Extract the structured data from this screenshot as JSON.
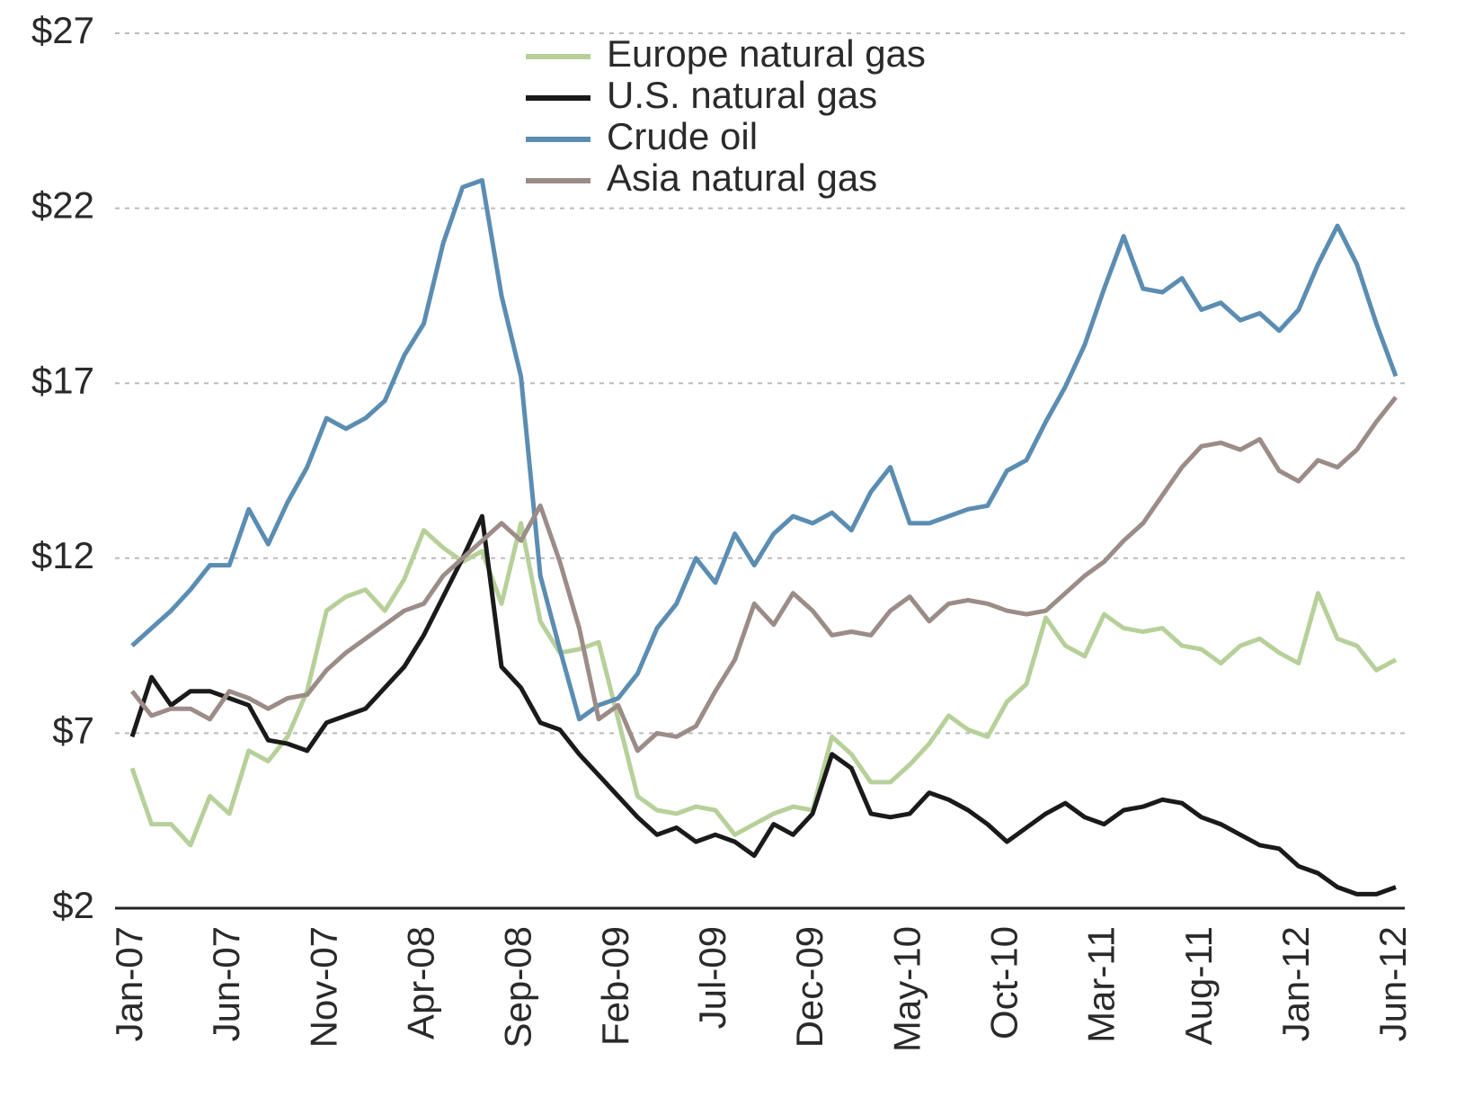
{
  "chart_data": {
    "type": "line",
    "categories": [
      "Jan-07",
      null,
      null,
      null,
      null,
      "Jun-07",
      null,
      null,
      null,
      null,
      "Nov-07",
      null,
      null,
      null,
      null,
      "Apr-08",
      null,
      null,
      null,
      null,
      "Sep-08",
      null,
      null,
      null,
      null,
      "Feb-09",
      null,
      null,
      null,
      null,
      "Jul-09",
      null,
      null,
      null,
      null,
      "Dec-09",
      null,
      null,
      null,
      null,
      "May-10",
      null,
      null,
      null,
      null,
      "Oct-10",
      null,
      null,
      null,
      null,
      "Mar-11",
      null,
      null,
      null,
      null,
      "Aug-11",
      null,
      null,
      null,
      null,
      "Jan-12",
      null,
      null,
      null,
      null,
      "Jun-12"
    ],
    "series": [
      {
        "name": "Europe natural gas",
        "color": "#b7d09a",
        "values": [
          6.0,
          4.4,
          4.4,
          3.8,
          5.2,
          4.7,
          6.5,
          6.2,
          6.9,
          8.2,
          10.5,
          10.9,
          11.1,
          10.5,
          11.4,
          12.8,
          12.3,
          11.9,
          12.2,
          10.7,
          13.0,
          10.2,
          9.3,
          9.4,
          9.6,
          7.4,
          5.2,
          4.8,
          4.7,
          4.9,
          4.8,
          4.1,
          4.4,
          4.7,
          4.9,
          4.8,
          6.9,
          6.4,
          5.6,
          5.6,
          6.1,
          6.7,
          7.5,
          7.1,
          6.9,
          7.9,
          8.4,
          10.3,
          9.5,
          9.2,
          10.4,
          10.0,
          9.9,
          10.0,
          9.5,
          9.4,
          9.0,
          9.5,
          9.7,
          9.3,
          9.0,
          11.0,
          9.7,
          9.5,
          8.8,
          9.1
        ]
      },
      {
        "name": "U.S. natural gas",
        "color": "#1a1a1a",
        "values": [
          6.9,
          8.6,
          7.8,
          8.2,
          8.2,
          8.0,
          7.8,
          6.8,
          6.7,
          6.5,
          7.3,
          7.5,
          7.7,
          8.3,
          8.9,
          9.8,
          10.9,
          12.0,
          13.2,
          8.9,
          8.3,
          7.3,
          7.1,
          6.4,
          5.8,
          5.2,
          4.6,
          4.1,
          4.3,
          3.9,
          4.1,
          3.9,
          3.5,
          4.4,
          4.1,
          4.7,
          6.4,
          6.0,
          4.7,
          4.6,
          4.7,
          5.3,
          5.1,
          4.8,
          4.4,
          3.9,
          4.3,
          4.7,
          5.0,
          4.6,
          4.4,
          4.8,
          4.9,
          5.1,
          5.0,
          4.6,
          4.4,
          4.1,
          3.8,
          3.7,
          3.2,
          3.0,
          2.6,
          2.4,
          2.4,
          2.6
        ]
      },
      {
        "name": "Crude oil",
        "color": "#5b8db2",
        "values": [
          9.5,
          10.0,
          10.5,
          11.1,
          11.8,
          11.8,
          13.4,
          12.4,
          13.6,
          14.6,
          16.0,
          15.7,
          16.0,
          16.5,
          17.8,
          18.7,
          21.0,
          22.6,
          22.8,
          19.5,
          17.2,
          11.5,
          9.4,
          7.4,
          7.8,
          8.0,
          8.7,
          10.0,
          10.7,
          12.0,
          11.3,
          12.7,
          11.8,
          12.7,
          13.2,
          13.0,
          13.3,
          12.8,
          13.9,
          14.6,
          13.0,
          13.0,
          13.2,
          13.4,
          13.5,
          14.5,
          14.8,
          15.9,
          16.9,
          18.1,
          19.7,
          21.2,
          19.7,
          19.6,
          20.0,
          19.1,
          19.3,
          18.8,
          19.0,
          18.5,
          19.1,
          20.4,
          21.5,
          20.4,
          18.7,
          17.2
        ]
      },
      {
        "name": "Asia natural gas",
        "color": "#9c8c88",
        "values": [
          8.2,
          7.5,
          7.7,
          7.7,
          7.4,
          8.2,
          8.0,
          7.7,
          8.0,
          8.1,
          8.8,
          9.3,
          9.7,
          10.1,
          10.5,
          10.7,
          11.5,
          12.0,
          12.5,
          13.0,
          12.5,
          13.5,
          11.9,
          10.0,
          7.4,
          7.8,
          6.5,
          7.0,
          6.9,
          7.2,
          8.2,
          9.1,
          10.7,
          10.1,
          11.0,
          10.5,
          9.8,
          9.9,
          9.8,
          10.5,
          10.9,
          10.2,
          10.7,
          10.8,
          10.7,
          10.5,
          10.4,
          10.5,
          11.0,
          11.5,
          11.9,
          12.5,
          13.0,
          13.8,
          14.6,
          15.2,
          15.3,
          15.1,
          15.4,
          14.5,
          14.2,
          14.8,
          14.6,
          15.1,
          15.9,
          16.6
        ]
      }
    ],
    "ylim": [
      2,
      27
    ],
    "yticks": [
      {
        "value": 2,
        "label": "$2"
      },
      {
        "value": 7,
        "label": "$7"
      },
      {
        "value": 12,
        "label": "$12"
      },
      {
        "value": 17,
        "label": "$17"
      },
      {
        "value": 22,
        "label": "$22"
      },
      {
        "value": 27,
        "label": "$27"
      }
    ],
    "grid": true
  }
}
